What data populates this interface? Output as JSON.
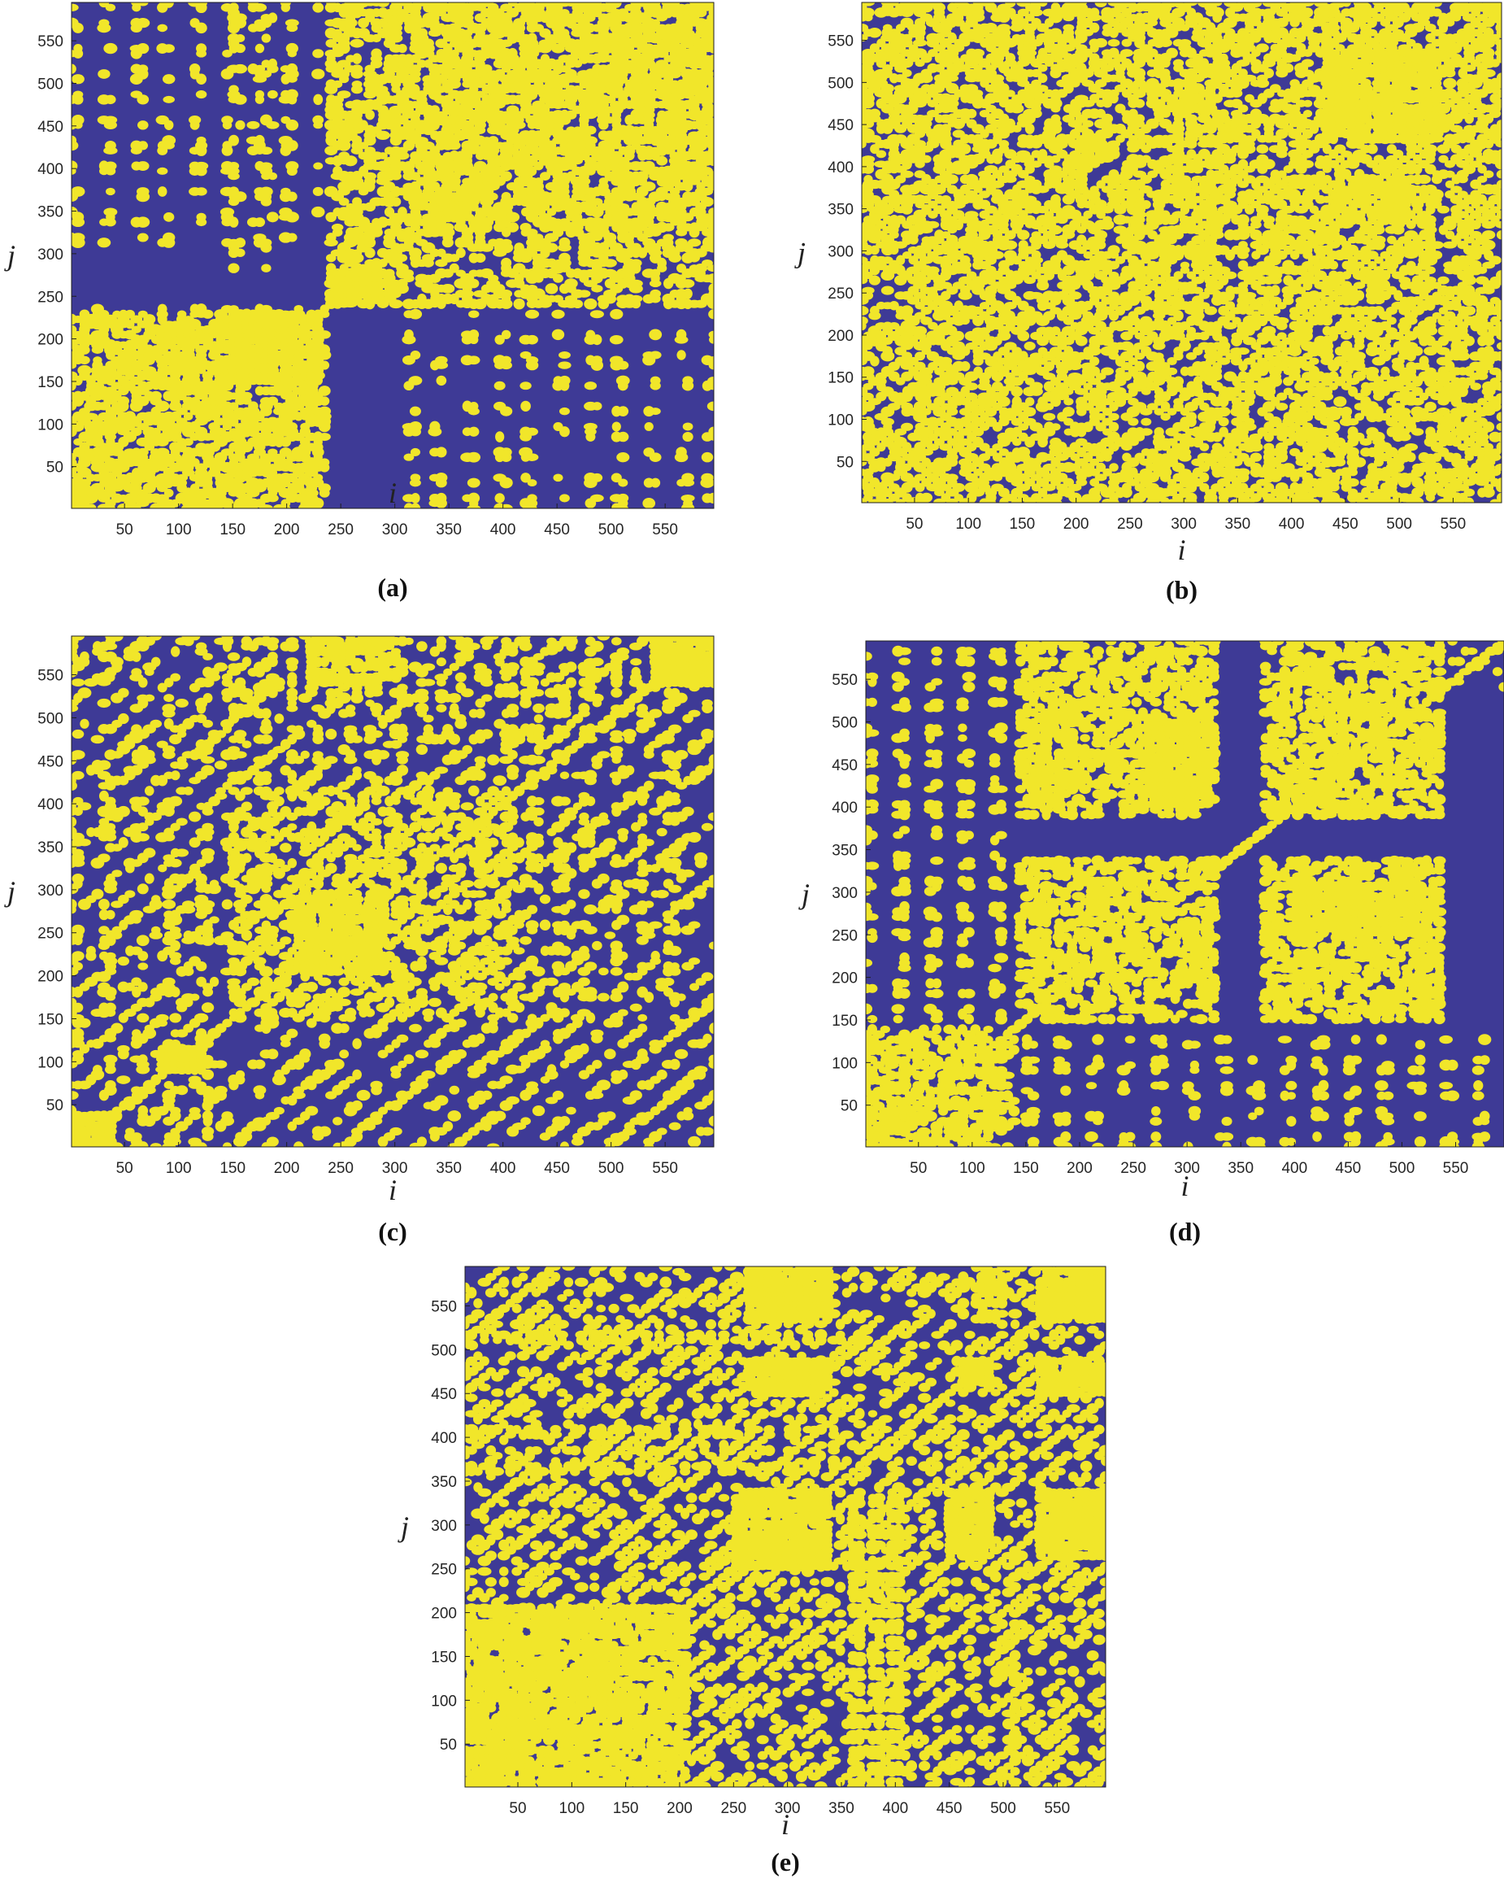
{
  "colors": {
    "background_state": "#3e3a96",
    "recurrence_state": "#f1e62a"
  },
  "chart_data": [
    {
      "type": "heatmap",
      "panel_label": "(a)",
      "xlabel": "i",
      "ylabel": "j",
      "xlim": [
        1,
        595
      ],
      "ylim": [
        1,
        595
      ],
      "xticks": [
        50,
        100,
        150,
        200,
        250,
        300,
        350,
        400,
        450,
        500,
        550
      ],
      "yticks": [
        50,
        100,
        150,
        200,
        250,
        300,
        350,
        400,
        450,
        500,
        550
      ],
      "blocks": [
        [
          0,
          230,
          0,
          230,
          0.5
        ],
        [
          150,
          230,
          150,
          230,
          0.9
        ],
        [
          90,
          140,
          170,
          220,
          0.8
        ],
        [
          240,
          600,
          240,
          600,
          0.45
        ],
        [
          300,
          600,
          330,
          600,
          0.7
        ],
        [
          240,
          300,
          240,
          280,
          0.9
        ],
        [
          410,
          480,
          440,
          530,
          0.7
        ],
        [
          490,
          560,
          480,
          560,
          0.8
        ]
      ],
      "stripes": [
        [
          0,
          225,
          15,
          0.45
        ],
        [
          0,
          240,
          30,
          0.2
        ],
        [
          0,
          240,
          -28,
          0.15
        ]
      ],
      "spots": [
        [
          0,
          230,
          300,
          600,
          28,
          0.1
        ],
        [
          300,
          600,
          0,
          230,
          28,
          0.08
        ],
        [
          130,
          190,
          280,
          600,
          30,
          0.1
        ]
      ],
      "line_width": 1.5,
      "seed": 11
    },
    {
      "type": "heatmap",
      "panel_label": "(b)",
      "xlabel": "i",
      "ylabel": "j",
      "xlim": [
        1,
        595
      ],
      "ylim": [
        1,
        595
      ],
      "xticks": [
        50,
        100,
        150,
        200,
        250,
        300,
        350,
        400,
        450,
        500,
        550
      ],
      "yticks": [
        50,
        100,
        150,
        200,
        250,
        300,
        350,
        400,
        450,
        500,
        550
      ],
      "blocks": [
        [
          430,
          540,
          430,
          540,
          0.85
        ],
        [
          440,
          530,
          330,
          390,
          0.7
        ],
        [
          290,
          360,
          430,
          520,
          0.5
        ]
      ],
      "stripes": [
        [
          0,
          600,
          12,
          0.35
        ],
        [
          0,
          600,
          -30,
          0.12
        ],
        [
          430,
          600,
          30,
          0.25
        ]
      ],
      "spots": [
        [
          0,
          270,
          270,
          600,
          25,
          0.3
        ],
        [
          270,
          430,
          270,
          600,
          25,
          0.3
        ],
        [
          430,
          600,
          0,
          270,
          25,
          0.25
        ],
        [
          270,
          430,
          0,
          270,
          25,
          0.2
        ]
      ],
      "line_width": 3.5,
      "seed": 23
    },
    {
      "type": "heatmap",
      "panel_label": "(c)",
      "xlabel": "i",
      "ylabel": "j",
      "xlim": [
        1,
        595
      ],
      "ylim": [
        1,
        595
      ],
      "xticks": [
        50,
        100,
        150,
        200,
        250,
        300,
        350,
        400,
        450,
        500,
        550
      ],
      "yticks": [
        50,
        100,
        150,
        200,
        250,
        300,
        350,
        400,
        450,
        500,
        550
      ],
      "blocks": [
        [
          210,
          290,
          200,
          300,
          0.85
        ],
        [
          540,
          600,
          540,
          600,
          0.95
        ],
        [
          85,
          125,
          90,
          120,
          1.0
        ],
        [
          0,
          40,
          0,
          40,
          0.9
        ],
        [
          220,
          300,
          540,
          600,
          0.8
        ]
      ],
      "stripes": [
        [
          150,
          420,
          14,
          0.3
        ],
        [
          0,
          600,
          35,
          0.15
        ],
        [
          540,
          600,
          25,
          0.3
        ]
      ],
      "spots": [
        [
          150,
          560,
          150,
          560,
          25,
          0.2
        ],
        [
          0,
          140,
          0,
          600,
          30,
          0.1
        ],
        [
          140,
          540,
          520,
          600,
          20,
          0.3
        ]
      ],
      "line_width": 4.0,
      "seed": 37
    },
    {
      "type": "heatmap",
      "panel_label": "(d)",
      "xlabel": "i",
      "ylabel": "j",
      "xlim": [
        1,
        595
      ],
      "ylim": [
        1,
        595
      ],
      "xticks": [
        50,
        100,
        150,
        200,
        250,
        300,
        350,
        400,
        450,
        500,
        550
      ],
      "yticks": [
        50,
        100,
        150,
        200,
        250,
        300,
        350,
        400,
        450,
        500,
        550
      ],
      "blocks": [
        [
          0,
          130,
          0,
          130,
          0.6
        ],
        [
          140,
          330,
          150,
          340,
          0.55
        ],
        [
          140,
          330,
          390,
          600,
          0.55
        ],
        [
          370,
          540,
          150,
          340,
          0.6
        ],
        [
          370,
          540,
          390,
          600,
          0.6
        ],
        [
          260,
          320,
          400,
          500,
          0.9
        ],
        [
          400,
          530,
          250,
          310,
          0.9
        ],
        [
          140,
          200,
          400,
          500,
          0.7
        ]
      ],
      "stripes": [
        [
          0,
          140,
          12,
          0.3
        ],
        [
          540,
          600,
          25,
          0.2
        ]
      ],
      "spots": [
        [
          0,
          130,
          140,
          600,
          30,
          0.08
        ],
        [
          140,
          600,
          0,
          130,
          30,
          0.06
        ]
      ],
      "line_width": 4.0,
      "seed": 53
    },
    {
      "type": "heatmap",
      "panel_label": "(e)",
      "xlabel": "i",
      "ylabel": "j",
      "xlim": [
        1,
        595
      ],
      "ylim": [
        1,
        595
      ],
      "xticks": [
        50,
        100,
        150,
        200,
        250,
        300,
        350,
        400,
        450,
        500,
        550
      ],
      "yticks": [
        50,
        100,
        150,
        200,
        250,
        300,
        350,
        400,
        450,
        500,
        550
      ],
      "blocks": [
        [
          0,
          210,
          0,
          210,
          0.8
        ],
        [
          250,
          340,
          250,
          340,
          0.95
        ],
        [
          260,
          340,
          530,
          600,
          0.95
        ],
        [
          260,
          340,
          450,
          490,
          0.95
        ],
        [
          450,
          490,
          260,
          340,
          0.95
        ],
        [
          530,
          600,
          260,
          340,
          0.95
        ],
        [
          460,
          490,
          460,
          490,
          0.95
        ],
        [
          530,
          600,
          530,
          600,
          0.9
        ],
        [
          530,
          600,
          450,
          490,
          0.9
        ],
        [
          470,
          500,
          530,
          600,
          0.8
        ]
      ],
      "stripes": [
        [
          0,
          600,
          10,
          0.25
        ]
      ],
      "spots": [
        [
          0,
          360,
          360,
          410,
          20,
          0.6
        ],
        [
          0,
          360,
          510,
          520,
          15,
          0.6
        ],
        [
          350,
          410,
          0,
          340,
          18,
          0.55
        ],
        [
          500,
          520,
          0,
          200,
          15,
          0.5
        ]
      ],
      "line_width": 4.5,
      "seed": 71
    }
  ]
}
